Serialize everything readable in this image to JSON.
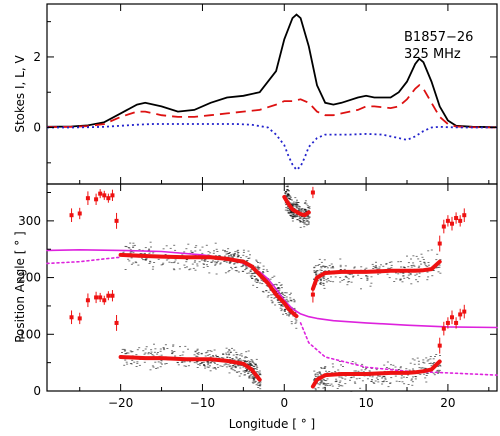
{
  "chart_data": [
    {
      "type": "line",
      "panel": "top",
      "annotation": [
        "B1857−26",
        "325 MHz"
      ],
      "ylabel": "Stokes I, L, V",
      "xlim": [
        -29,
        26
      ],
      "ylim": [
        -1.6,
        3.5
      ],
      "xticks": [
        -20,
        -10,
        0,
        10,
        20
      ],
      "yticks": [
        0,
        2
      ],
      "series": [
        {
          "key": "I",
          "color": "#000000",
          "style": "solid",
          "x": [
            -29,
            -26,
            -24,
            -22,
            -20,
            -18,
            -17,
            -15,
            -13,
            -11,
            -9,
            -7,
            -5,
            -3,
            -1,
            0,
            1,
            1.5,
            2,
            3,
            4,
            5,
            6,
            7,
            9,
            10,
            11,
            13,
            14,
            15,
            16,
            16.5,
            17,
            18,
            19,
            20,
            21,
            23,
            26
          ],
          "y": [
            0.02,
            0.03,
            0.06,
            0.15,
            0.4,
            0.65,
            0.7,
            0.6,
            0.45,
            0.5,
            0.7,
            0.85,
            0.9,
            1.0,
            1.6,
            2.5,
            3.1,
            3.2,
            3.1,
            2.3,
            1.2,
            0.7,
            0.65,
            0.7,
            0.85,
            0.9,
            0.85,
            0.85,
            1.0,
            1.3,
            1.8,
            1.95,
            1.85,
            1.3,
            0.6,
            0.2,
            0.05,
            0.02,
            0.01
          ]
        },
        {
          "key": "L",
          "color": "#dd1111",
          "style": "dashed",
          "x": [
            -29,
            -26,
            -24,
            -22,
            -20,
            -18,
            -17,
            -15,
            -13,
            -11,
            -9,
            -7,
            -5,
            -3,
            -1,
            0,
            1,
            2,
            3,
            4,
            5,
            6,
            7,
            9,
            10,
            11,
            13,
            14,
            15,
            16,
            16.5,
            17,
            18,
            19,
            20,
            21,
            23,
            26
          ],
          "y": [
            0.01,
            0.02,
            0.04,
            0.1,
            0.3,
            0.45,
            0.45,
            0.35,
            0.3,
            0.3,
            0.35,
            0.4,
            0.45,
            0.5,
            0.65,
            0.75,
            0.75,
            0.8,
            0.7,
            0.45,
            0.35,
            0.35,
            0.4,
            0.5,
            0.6,
            0.6,
            0.55,
            0.6,
            0.8,
            1.1,
            1.2,
            1.1,
            0.7,
            0.3,
            0.1,
            0.03,
            0.01,
            0.0
          ]
        },
        {
          "key": "V",
          "color": "#2222cc",
          "style": "dotted",
          "x": [
            -29,
            -26,
            -24,
            -22,
            -20,
            -18,
            -16,
            -14,
            -12,
            -10,
            -8,
            -6,
            -4,
            -2,
            -1,
            0,
            0.5,
            1,
            1.5,
            2,
            2.5,
            3,
            4,
            5,
            6,
            8,
            10,
            12,
            13,
            14,
            15,
            16,
            17,
            18,
            19,
            20,
            22,
            26
          ],
          "y": [
            0.0,
            0.0,
            0.01,
            0.02,
            0.05,
            0.08,
            0.1,
            0.1,
            0.1,
            0.1,
            0.1,
            0.1,
            0.08,
            0.0,
            -0.2,
            -0.5,
            -0.8,
            -1.05,
            -1.2,
            -1.1,
            -0.85,
            -0.55,
            -0.3,
            -0.2,
            -0.2,
            -0.2,
            -0.18,
            -0.2,
            -0.25,
            -0.3,
            -0.35,
            -0.25,
            -0.1,
            0.0,
            0.02,
            0.01,
            0.0,
            0.0
          ]
        }
      ]
    },
    {
      "type": "scatter",
      "panel": "bottom",
      "xlabel": "Longitude [ ° ]",
      "ylabel": "Position Angle [ ° ]",
      "xlim": [
        -29,
        26
      ],
      "ylim": [
        0,
        365
      ],
      "xticks": [
        -20,
        -10,
        0,
        10,
        20
      ],
      "yticks": [
        0,
        100,
        200,
        300
      ],
      "series": [
        {
          "key": "rvm_fit",
          "color": "#dd22dd",
          "style": "solid",
          "x": [
            -29,
            -25,
            -20,
            -15,
            -10,
            -7,
            -5,
            -3,
            -2,
            -1,
            0,
            1,
            2,
            3,
            4,
            6,
            10,
            15,
            20,
            26
          ],
          "y": [
            248,
            249,
            248,
            246,
            240,
            234,
            225,
            210,
            198,
            180,
            160,
            145,
            136,
            131,
            128,
            124,
            120,
            116,
            113,
            112
          ]
        },
        {
          "key": "rvm_fit_upper_dotted",
          "color": "#dd22dd",
          "style": "dotted",
          "x": [
            -29,
            -25,
            -22,
            -20
          ],
          "y": [
            225,
            228,
            233,
            236
          ]
        },
        {
          "key": "rvm_fit_lower_dotted",
          "color": "#dd22dd",
          "style": "dotted",
          "x": [
            2,
            3,
            5,
            10,
            15,
            20,
            26
          ],
          "y": [
            120,
            85,
            60,
            42,
            35,
            32,
            28
          ]
        },
        {
          "key": "PA_primary_main",
          "color": "#ee1111",
          "style": "thick",
          "x": [
            -20,
            -17,
            -15,
            -12,
            -9,
            -7,
            -5,
            -4,
            -3,
            -2,
            -1,
            0,
            0.5,
            1,
            1.5
          ],
          "y": [
            240,
            238,
            237,
            236,
            236,
            233,
            228,
            220,
            205,
            190,
            170,
            155,
            145,
            138,
            132
          ]
        },
        {
          "key": "PA_primary_top",
          "color": "#ee1111",
          "style": "thick",
          "x": [
            0,
            0.5,
            1,
            2,
            2.5,
            3
          ],
          "y": [
            342,
            330,
            320,
            312,
            310,
            315
          ]
        },
        {
          "key": "PA_primary_right",
          "color": "#ee1111",
          "style": "thick",
          "x": [
            3.5,
            4,
            5,
            7,
            10,
            13,
            15,
            16,
            17,
            18,
            19
          ],
          "y": [
            180,
            200,
            208,
            210,
            210,
            212,
            212,
            212,
            213,
            215,
            228
          ]
        },
        {
          "key": "PA_orthogonal_left",
          "color": "#ee1111",
          "style": "thick",
          "x": [
            -20,
            -17,
            -15,
            -12,
            -9,
            -7,
            -5,
            -4,
            -3
          ],
          "y": [
            60,
            58,
            58,
            56,
            56,
            53,
            48,
            38,
            20
          ]
        },
        {
          "key": "PA_orthogonal_right",
          "color": "#ee1111",
          "style": "thick",
          "x": [
            3.5,
            4,
            5,
            7,
            10,
            13,
            15,
            16,
            17,
            18,
            19
          ],
          "y": [
            8,
            20,
            28,
            30,
            30,
            32,
            32,
            33,
            35,
            38,
            52
          ]
        }
      ],
      "error_points": {
        "color": "#ee1111",
        "x": [
          -26,
          -25,
          -24,
          -23,
          -22.5,
          -22,
          -21.5,
          -21,
          -20.5,
          -26,
          -25,
          -24,
          -23,
          -22.5,
          -22,
          -21.5,
          -21,
          -20.5,
          19,
          19.5,
          20,
          20.5,
          21,
          21.5,
          22,
          19,
          19.5,
          20,
          20.5,
          21,
          21.5,
          22,
          3.5,
          3.5
        ],
        "y": [
          310,
          313,
          340,
          338,
          348,
          345,
          340,
          345,
          300,
          130,
          128,
          160,
          165,
          165,
          160,
          168,
          168,
          120,
          260,
          290,
          300,
          295,
          305,
          300,
          310,
          80,
          110,
          120,
          130,
          120,
          135,
          140,
          350,
          170
        ],
        "err": [
          12,
          10,
          12,
          10,
          8,
          8,
          8,
          10,
          14,
          12,
          10,
          12,
          10,
          8,
          8,
          8,
          10,
          14,
          14,
          12,
          10,
          12,
          10,
          10,
          12,
          14,
          12,
          10,
          12,
          10,
          10,
          12,
          10,
          14
        ]
      },
      "noise_cloud": {
        "color": "#000000",
        "bands": [
          {
            "x": [
              -20,
              -15,
              -10,
              -7,
              -5,
              -3,
              -1,
              0,
              1.5
            ],
            "y": [
              240,
              238,
              236,
              234,
              228,
              205,
              172,
              155,
              133
            ]
          },
          {
            "x": [
              -20,
              -15,
              -10,
              -7,
              -5,
              -4,
              -3
            ],
            "y": [
              60,
              58,
              57,
              54,
              48,
              38,
              20
            ]
          },
          {
            "x": [
              0,
              0.5,
              1,
              2,
              3
            ],
            "y": [
              345,
              332,
              320,
              312,
              312
            ]
          },
          {
            "x": [
              3.5,
              5,
              10,
              15,
              19
            ],
            "y": [
              205,
              208,
              210,
              212,
              228
            ]
          },
          {
            "x": [
              3.5,
              5,
              10,
              15,
              19
            ],
            "y": [
              15,
              28,
              30,
              32,
              50
            ]
          }
        ]
      }
    }
  ]
}
